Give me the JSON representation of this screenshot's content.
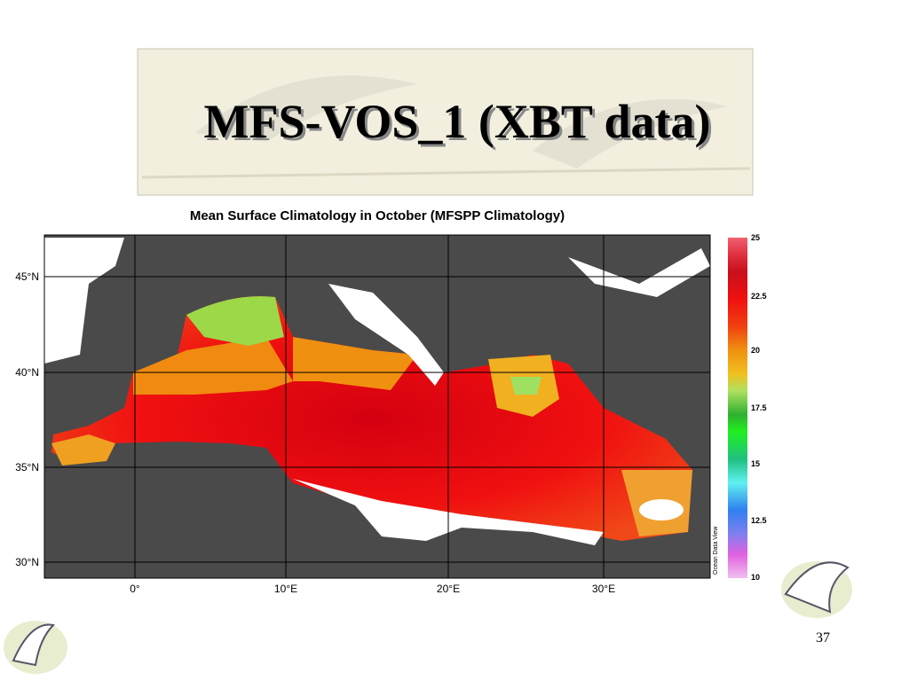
{
  "slide": {
    "title": "MFS-VOS_1 (XBT data)",
    "page_number": "37"
  },
  "map": {
    "title": "Mean Surface Climatology in October (MFSPP Climatology)",
    "lat_labels": [
      "45°N",
      "40°N",
      "35°N",
      "30°N"
    ],
    "lon_labels": [
      "0°",
      "10°E",
      "20°E",
      "30°E"
    ],
    "colorbar_labels": [
      "25",
      "22.5",
      "20",
      "17.5",
      "15",
      "12.5",
      "10"
    ],
    "credit": "Ocean Data View"
  }
}
